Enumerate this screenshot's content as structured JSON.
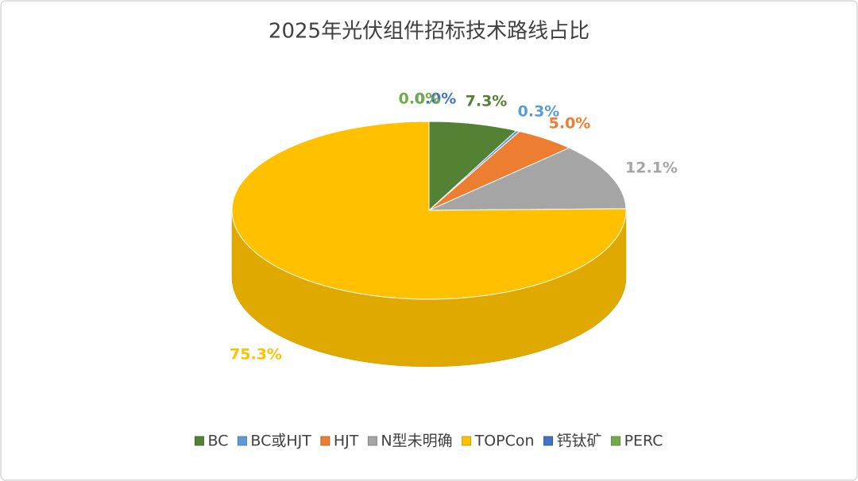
{
  "chart_data": {
    "type": "pie3d",
    "title": "2025年光伏组件招标技术路线占比",
    "categories": [
      "BC",
      "BC或HJT",
      "HJT",
      "N型未明确",
      "TOPCon",
      "钙钛矿",
      "PERC"
    ],
    "values": [
      7.3,
      0.3,
      5.0,
      12.1,
      75.3,
      0,
      0
    ],
    "value_labels": [
      "7.3%",
      "0.3%",
      "5.0%",
      "12.1%",
      "75.3%",
      "0.0%",
      "0.0%"
    ],
    "colors": [
      "#548235",
      "#5b9bd5",
      "#ed7d31",
      "#a5a5a5",
      "#ffc000",
      "#4472c4",
      "#70ad47"
    ],
    "legend": "bottom"
  }
}
